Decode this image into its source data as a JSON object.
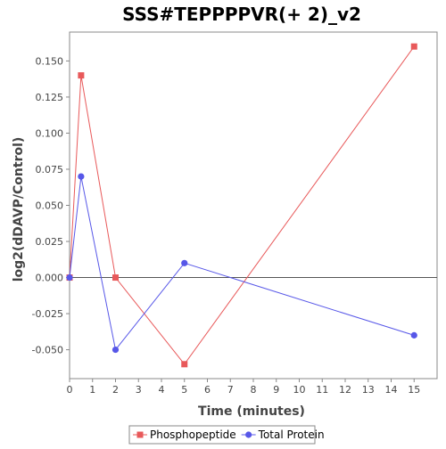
{
  "chart_data": {
    "type": "line",
    "title": "SSS#TEPPPPVR(+ 2)_v2",
    "xlabel": "Time (minutes)",
    "ylabel": "log2(dDAVP/Control)",
    "xlim": [
      0,
      16
    ],
    "ylim": [
      -0.07,
      0.17
    ],
    "x_ticks": [
      0,
      1,
      2,
      3,
      4,
      5,
      6,
      7,
      8,
      9,
      10,
      11,
      12,
      13,
      14,
      15
    ],
    "y_ticks": [
      -0.05,
      -0.025,
      0,
      0.025,
      0.05,
      0.075,
      0.1,
      0.125,
      0.15
    ],
    "y_tick_labels": [
      "-0.050",
      "-0.025",
      "0.000",
      "0.025",
      "0.050",
      "0.075",
      "0.100",
      "0.125",
      "0.150"
    ],
    "zero_line": true,
    "grid": false,
    "legend_position": "bottom",
    "series": [
      {
        "name": "Phosphopeptide",
        "color": "#e8595a",
        "marker": "square",
        "x": [
          0,
          0.5,
          2,
          5,
          15
        ],
        "y": [
          0,
          0.14,
          0,
          -0.06,
          0.16
        ]
      },
      {
        "name": "Total Protein",
        "color": "#5757e8",
        "marker": "circle",
        "x": [
          0,
          0.5,
          2,
          5,
          15
        ],
        "y": [
          0,
          0.07,
          -0.05,
          0.01,
          -0.04
        ]
      }
    ]
  }
}
